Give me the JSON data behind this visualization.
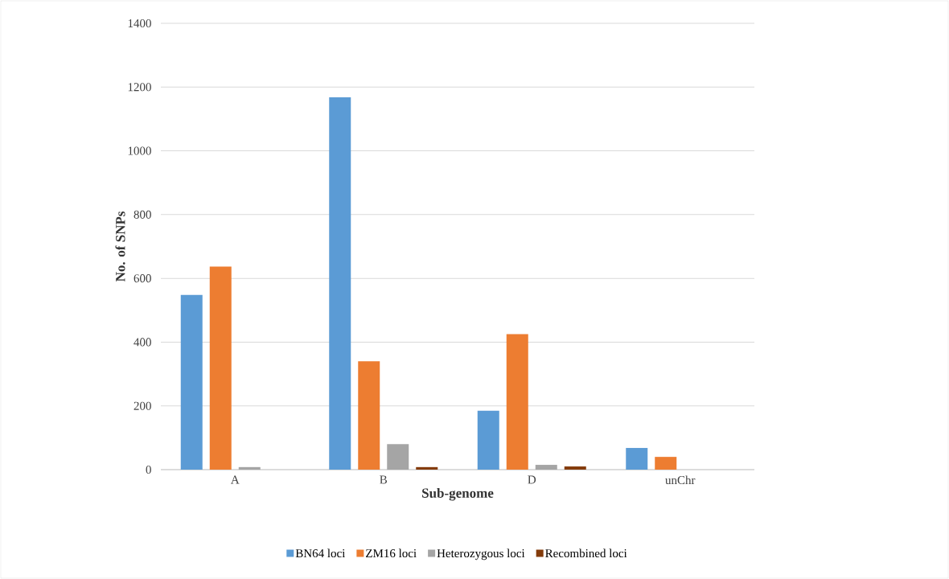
{
  "chart_data": {
    "type": "bar",
    "xlabel": "Sub-genome",
    "ylabel": "No. of SNPs",
    "categories": [
      "A",
      "B",
      "D",
      "unChr"
    ],
    "series": [
      {
        "name": "BN64 loci",
        "color": "#5b9bd5",
        "values": [
          548,
          1168,
          185,
          68
        ]
      },
      {
        "name": "ZM16 loci",
        "color": "#ed7d31",
        "values": [
          637,
          340,
          425,
          40
        ]
      },
      {
        "name": "Heterozygous loci",
        "color": "#a5a5a5",
        "values": [
          8,
          80,
          15,
          0
        ]
      },
      {
        "name": "Recombined loci",
        "color": "#843c0c",
        "values": [
          0,
          8,
          10,
          0
        ]
      }
    ],
    "ylim": [
      0,
      1400
    ],
    "yticks": [
      0,
      200,
      400,
      600,
      800,
      1000,
      1200,
      1400
    ],
    "grid": "y",
    "legend": "bottom"
  }
}
